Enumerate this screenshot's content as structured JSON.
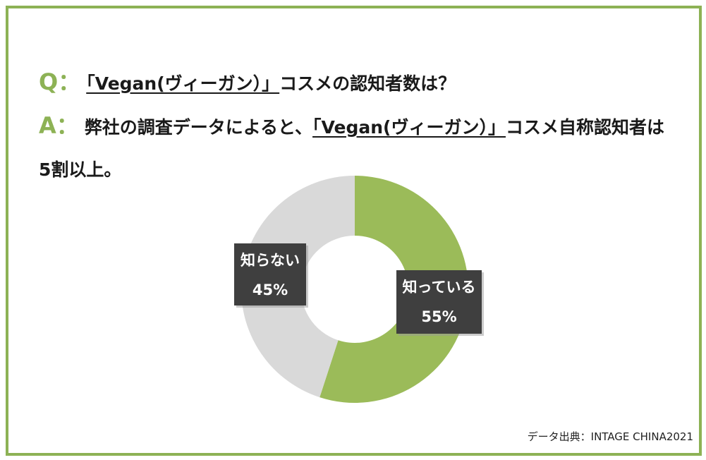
{
  "chart_data": {
    "type": "donut",
    "question_label": "Q：",
    "question": [
      "「Vegan(ヴィーガン）」",
      "コスメの認知者数は？"
    ],
    "answer_label": "A：",
    "answer": [
      "弊社の調査データによると、",
      "「Vegan(ヴィーガン）」",
      "コスメ自称認知者は5割以上。"
    ],
    "categories": [
      "知っている",
      "知らない"
    ],
    "values": [
      55,
      45
    ],
    "value_labels": [
      "55%",
      "45%"
    ],
    "colors": [
      "#9bbb59",
      "#d9d9d9"
    ],
    "source": "データ出典：INTAGE CHINA2021"
  }
}
